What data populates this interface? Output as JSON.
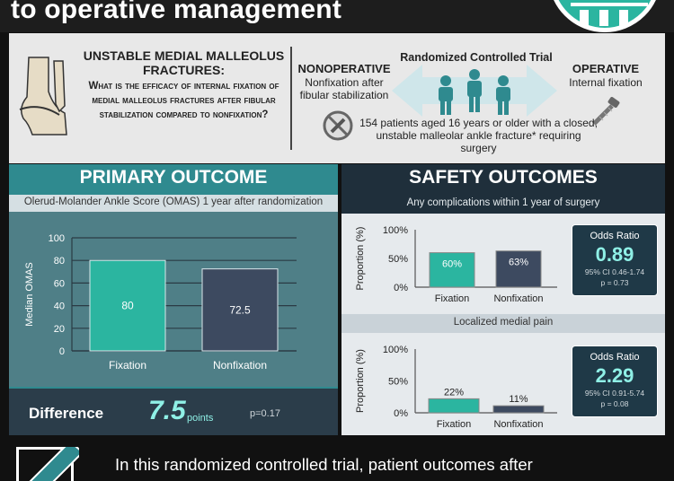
{
  "header": {
    "title": "to operative management"
  },
  "question": {
    "title": "UNSTABLE MEDIAL MALLEOLUS FRACTURES:",
    "body": "What is the efficacy of internal fixation of medial malleolus fractures after fibular stabilization compared to nonfixation?"
  },
  "trial": {
    "label": "Randomized Controlled Trial",
    "nonoperative_title": "NONOPERATIVE",
    "nonoperative_sub": "Nonfixation after fibular stabilization",
    "operative_title": "OPERATIVE",
    "operative_sub": "Internal fixation",
    "description": "154 patients aged 16 years or older with a closed, unstable malleolar ankle fracture* requiring surgery"
  },
  "primary": {
    "title": "PRIMARY OUTCOME",
    "subtitle": "Olerud-Molander Ankle Score (OMAS) 1 year after randomization",
    "difference_label": "Difference",
    "difference_value": "7.5",
    "difference_unit": "points",
    "difference_p": "p=0.17"
  },
  "safety": {
    "title": "SAFETY OUTCOMES",
    "sub1": "Any complications within 1 year of surgery",
    "sub2": "Localized medial pain",
    "or1": {
      "title": "Odds Ratio",
      "value": "0.89",
      "ci": "95% CI 0.46-1.74",
      "p": "p = 0.73"
    },
    "or2": {
      "title": "Odds Ratio",
      "value": "2.29",
      "ci": "95% CI 0.91-5.74",
      "p": "p = 0.08"
    }
  },
  "bottom": {
    "text": "In this randomized controlled trial, patient outcomes after"
  },
  "colors": {
    "teal": "#2bb5a0",
    "slate": "#3d4a60",
    "accent": "#8ff0e6"
  },
  "icons": [
    "ankle-bone-icon",
    "no-screw-icon",
    "screw-icon",
    "people-icon",
    "checkmark-icon"
  ],
  "chart_data": [
    {
      "type": "bar",
      "title": "Olerud-Molander Ankle Score (OMAS) 1 year after randomization",
      "categories": [
        "Fixation",
        "Nonfixation"
      ],
      "values": [
        80,
        72.5
      ],
      "data_labels": [
        "80",
        "72.5"
      ],
      "ylabel": "Median OMAS",
      "yticks": [
        "0",
        "20",
        "40",
        "60",
        "80",
        "100"
      ],
      "ylim": [
        0,
        100
      ],
      "grid": true
    },
    {
      "type": "bar",
      "title": "Any complications within 1 year of surgery",
      "categories": [
        "Fixation",
        "Nonfixation"
      ],
      "values": [
        60,
        63
      ],
      "data_labels": [
        "60%",
        "63%"
      ],
      "ylabel": "Proportion (%)",
      "yticks": [
        "0%",
        "50%",
        "100%"
      ],
      "ylim": [
        0,
        100
      ]
    },
    {
      "type": "bar",
      "title": "Localized medial pain",
      "categories": [
        "Fixation",
        "Nonfixation"
      ],
      "values": [
        22,
        11
      ],
      "data_labels": [
        "22%",
        "11%"
      ],
      "ylabel": "Proportion (%)",
      "yticks": [
        "0%",
        "50%",
        "100%"
      ],
      "ylim": [
        0,
        100
      ]
    }
  ]
}
